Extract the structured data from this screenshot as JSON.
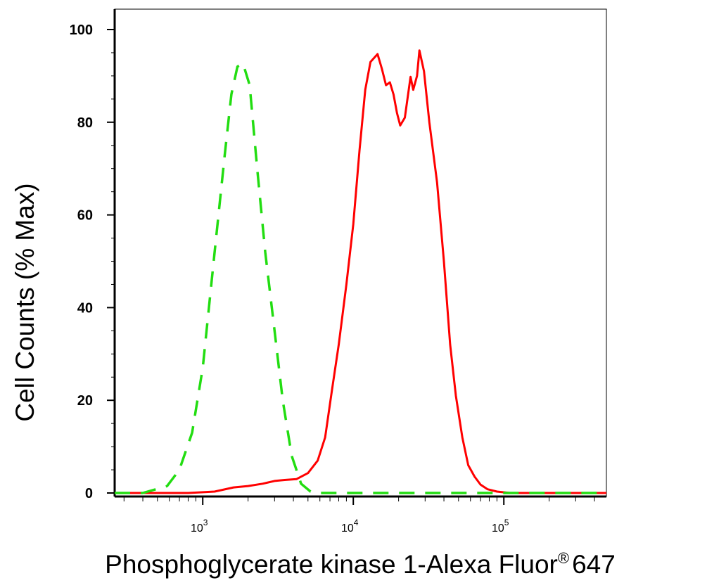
{
  "chart_data": {
    "type": "line",
    "title": "",
    "xlabel": "Phosphoglycerate kinase 1-Alexa Fluor",
    "xlabel_superscript": "®",
    "xlabel_suffix": "647",
    "ylabel": "Cell Counts (% Max)",
    "xscale": "log",
    "xlim": [
      260,
      480000
    ],
    "ylim": [
      0,
      105
    ],
    "yticks": [
      0,
      20,
      40,
      60,
      80,
      100
    ],
    "xticks": [
      {
        "value": 1000,
        "base": "10",
        "exp": "3"
      },
      {
        "value": 10000,
        "base": "10",
        "exp": "4"
      },
      {
        "value": 100000,
        "base": "10",
        "exp": "5"
      }
    ],
    "grid": false,
    "series": [
      {
        "color": "#ff0000",
        "style": "solid",
        "points": [
          [
            260,
            0
          ],
          [
            800,
            0
          ],
          [
            1200,
            0.3
          ],
          [
            1600,
            1.2
          ],
          [
            2000,
            1.5
          ],
          [
            2500,
            2
          ],
          [
            3000,
            2.6
          ],
          [
            3500,
            2.8
          ],
          [
            4200,
            3
          ],
          [
            5000,
            4.3
          ],
          [
            5800,
            7
          ],
          [
            6500,
            12
          ],
          [
            7200,
            22
          ],
          [
            8000,
            32
          ],
          [
            9000,
            45
          ],
          [
            10000,
            58
          ],
          [
            11000,
            74
          ],
          [
            12000,
            87
          ],
          [
            13000,
            93
          ],
          [
            14500,
            94.7
          ],
          [
            15500,
            91.5
          ],
          [
            16500,
            88
          ],
          [
            17500,
            88.6
          ],
          [
            18500,
            86
          ],
          [
            19500,
            82
          ],
          [
            20500,
            79.3
          ],
          [
            22000,
            81
          ],
          [
            24000,
            89.8
          ],
          [
            25000,
            87
          ],
          [
            26500,
            90
          ],
          [
            27500,
            95.5
          ],
          [
            29500,
            91
          ],
          [
            32000,
            80
          ],
          [
            36000,
            67
          ],
          [
            40000,
            50
          ],
          [
            44000,
            32
          ],
          [
            48000,
            21
          ],
          [
            53000,
            12
          ],
          [
            58000,
            6
          ],
          [
            64000,
            3.5
          ],
          [
            70000,
            1.8
          ],
          [
            78000,
            0.8
          ],
          [
            90000,
            0.3
          ],
          [
            110000,
            0
          ],
          [
            480000,
            0
          ]
        ]
      },
      {
        "color": "#22dd11",
        "style": "dashed",
        "points": [
          [
            260,
            0
          ],
          [
            400,
            0
          ],
          [
            580,
            1.5
          ],
          [
            700,
            5
          ],
          [
            850,
            13
          ],
          [
            1000,
            27
          ],
          [
            1200,
            52
          ],
          [
            1400,
            73
          ],
          [
            1550,
            86
          ],
          [
            1700,
            92
          ],
          [
            1850,
            92.7
          ],
          [
            2050,
            88
          ],
          [
            2300,
            70
          ],
          [
            2600,
            52
          ],
          [
            3000,
            35
          ],
          [
            3400,
            20
          ],
          [
            3900,
            8
          ],
          [
            4500,
            2
          ],
          [
            5200,
            0.3
          ],
          [
            6000,
            0
          ],
          [
            480000,
            0
          ]
        ]
      }
    ]
  }
}
